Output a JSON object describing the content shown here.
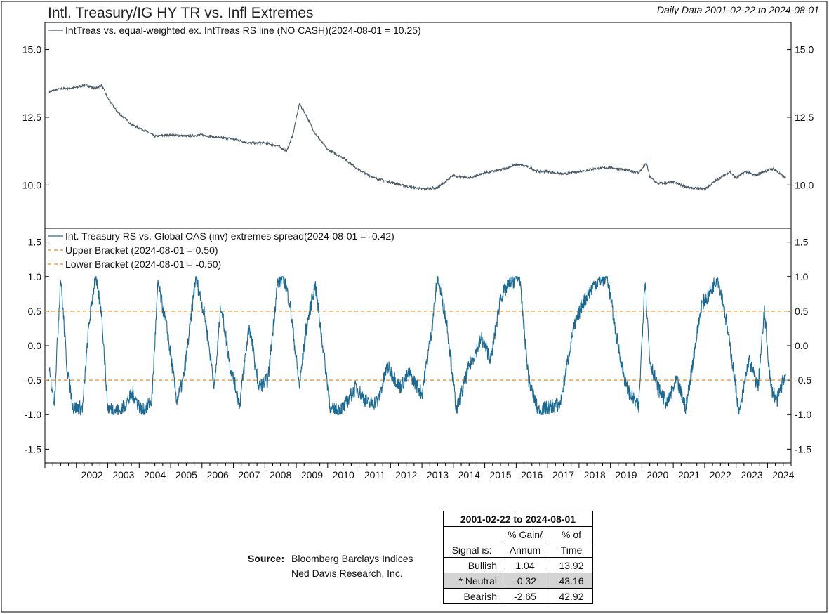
{
  "title": "Intl. Treasury/IG HY TR vs. Infl Extremes",
  "subtitle": "Daily Data 2001-02-22 to 2024-08-01",
  "chart_data": [
    {
      "type": "line",
      "legend": [
        "IntTreas vs. equal-weighted ex. IntTreas RS line (NO CASH)(2024-08-01 = 10.25)"
      ],
      "y_ticks": [
        "15.0",
        "12.5",
        "10.0"
      ],
      "ylim": [
        8.4,
        16.0
      ],
      "series": [
        {
          "name": "IntTreas vs. equal-weighted ex. IntTreas RS line (NO CASH)(2024-08-01 = 10.25)",
          "color": "#4a5a66",
          "x": [
            2001.14,
            2001.5,
            2002.0,
            2002.3,
            2002.6,
            2002.8,
            2003.0,
            2003.3,
            2003.6,
            2003.8,
            2004.2,
            2004.5,
            2005.0,
            2005.5,
            2006.0,
            2006.5,
            2007.0,
            2007.5,
            2008.0,
            2008.4,
            2008.7,
            2008.9,
            2009.1,
            2009.3,
            2009.6,
            2010.0,
            2010.5,
            2011.0,
            2011.5,
            2012.0,
            2012.5,
            2013.0,
            2013.5,
            2014.0,
            2014.5,
            2015.0,
            2015.5,
            2016.0,
            2016.3,
            2016.7,
            2017.0,
            2017.5,
            2018.0,
            2018.5,
            2019.0,
            2019.5,
            2019.9,
            2020.15,
            2020.25,
            2020.5,
            2021.0,
            2021.5,
            2022.0,
            2022.4,
            2022.8,
            2023.0,
            2023.3,
            2023.6,
            2024.0,
            2024.2,
            2024.4,
            2024.58
          ],
          "values": [
            13.45,
            13.55,
            13.6,
            13.7,
            13.55,
            13.7,
            13.2,
            12.7,
            12.4,
            12.2,
            12.0,
            11.8,
            11.85,
            11.8,
            11.85,
            11.75,
            11.7,
            11.55,
            11.55,
            11.45,
            11.25,
            11.9,
            13.0,
            12.6,
            11.9,
            11.3,
            11.0,
            10.55,
            10.25,
            10.1,
            9.95,
            9.85,
            9.9,
            10.35,
            10.25,
            10.45,
            10.55,
            10.75,
            10.7,
            10.5,
            10.5,
            10.4,
            10.5,
            10.6,
            10.65,
            10.55,
            10.45,
            10.8,
            10.3,
            10.05,
            10.1,
            9.9,
            9.85,
            10.2,
            10.5,
            10.25,
            10.5,
            10.35,
            10.55,
            10.6,
            10.4,
            10.25
          ]
        }
      ]
    },
    {
      "type": "line",
      "legend": [
        "Int. Treasury RS vs. Global OAS (inv) extremes spread(2024-08-01 = -0.42)",
        "Upper Bracket (2024-08-01 = 0.50)",
        "Lower Bracket (2024-08-01 = -0.50)"
      ],
      "y_ticks": [
        "1.5",
        "1.0",
        "0.5",
        "0.0",
        "-0.5",
        "-1.0",
        "-1.5"
      ],
      "ylim": [
        -1.7,
        1.7
      ],
      "series": [
        {
          "name": "Int. Treasury RS vs. Global OAS (inv) extremes spread(2024-08-01 = -0.42)",
          "color": "#1b6a94",
          "x": [
            2001.14,
            2001.3,
            2001.5,
            2001.7,
            2001.9,
            2002.2,
            2002.4,
            2002.6,
            2002.8,
            2003.0,
            2003.4,
            2003.8,
            2004.1,
            2004.4,
            2004.6,
            2004.9,
            2005.2,
            2005.4,
            2005.6,
            2005.8,
            2006.1,
            2006.4,
            2006.6,
            2006.9,
            2007.2,
            2007.5,
            2007.8,
            2008.1,
            2008.4,
            2008.6,
            2008.8,
            2009.1,
            2009.3,
            2009.6,
            2010.1,
            2010.5,
            2010.9,
            2011.3,
            2011.6,
            2011.9,
            2012.3,
            2012.6,
            2013.0,
            2013.3,
            2013.5,
            2013.8,
            2014.1,
            2014.5,
            2014.9,
            2015.2,
            2015.5,
            2015.8,
            2016.1,
            2016.4,
            2016.7,
            2017.0,
            2017.4,
            2017.8,
            2018.1,
            2018.5,
            2018.9,
            2019.2,
            2019.5,
            2019.9,
            2020.1,
            2020.25,
            2020.5,
            2020.8,
            2021.1,
            2021.4,
            2021.7,
            2021.9,
            2022.1,
            2022.4,
            2022.6,
            2022.9,
            2023.1,
            2023.4,
            2023.7,
            2023.9,
            2024.1,
            2024.3,
            2024.5,
            2024.58
          ],
          "values": [
            -0.4,
            -0.8,
            1.0,
            -0.3,
            -0.9,
            -0.9,
            0.3,
            1.0,
            0.5,
            -0.9,
            -0.95,
            -0.7,
            -0.95,
            -0.8,
            0.9,
            0.2,
            -0.8,
            -0.5,
            0.2,
            1.0,
            0.4,
            -0.6,
            0.6,
            -0.3,
            -0.85,
            0.3,
            -0.6,
            -0.5,
            0.9,
            1.0,
            0.6,
            -0.6,
            0.2,
            0.9,
            -0.95,
            -0.9,
            -0.6,
            -0.85,
            -0.8,
            -0.3,
            -0.6,
            -0.4,
            -0.7,
            0.2,
            1.0,
            0.3,
            -0.95,
            -0.3,
            0.1,
            -0.2,
            0.7,
            0.9,
            1.0,
            -0.5,
            -0.95,
            -0.9,
            -0.85,
            0.2,
            0.6,
            0.9,
            1.0,
            0.1,
            -0.6,
            -0.9,
            1.0,
            -0.2,
            -0.6,
            -0.85,
            -0.5,
            -0.9,
            0.0,
            0.6,
            0.7,
            1.0,
            0.6,
            -0.3,
            -1.0,
            -0.2,
            -0.6,
            0.5,
            -0.6,
            -0.8,
            -0.5,
            -0.42
          ]
        },
        {
          "name": "Upper Bracket (2024-08-01 = 0.50)",
          "color": "#f08c1e",
          "x": [
            2001.14,
            2024.58
          ],
          "values": [
            0.5,
            0.5
          ]
        },
        {
          "name": "Lower Bracket (2024-08-01 = -0.50)",
          "color": "#f08c1e",
          "x": [
            2001.14,
            2024.58
          ],
          "values": [
            -0.5,
            -0.5
          ]
        }
      ]
    }
  ],
  "x_axis": {
    "years": [
      "2002",
      "2003",
      "2004",
      "2005",
      "2006",
      "2007",
      "2008",
      "2009",
      "2010",
      "2011",
      "2012",
      "2013",
      "2014",
      "2015",
      "2016",
      "2017",
      "2018",
      "2019",
      "2020",
      "2021",
      "2022",
      "2023",
      "2024"
    ],
    "xlim": [
      2001.0,
      2024.75
    ]
  },
  "source": {
    "label": "Source:",
    "lines": [
      "Bloomberg Barclays Indices",
      "Ned Davis Research, Inc."
    ]
  },
  "stats_table": {
    "header": "2001-02-22 to 2024-08-01",
    "col0": "Signal is:",
    "col1": [
      "% Gain/",
      "Annum"
    ],
    "col2": [
      "% of",
      "Time"
    ],
    "rows": [
      {
        "label": "Bullish",
        "gain": "1.04",
        "time": "13.92"
      },
      {
        "label": "* Neutral",
        "gain": "-0.32",
        "time": "43.16"
      },
      {
        "label": "Bearish",
        "gain": "-2.65",
        "time": "42.92"
      }
    ]
  }
}
